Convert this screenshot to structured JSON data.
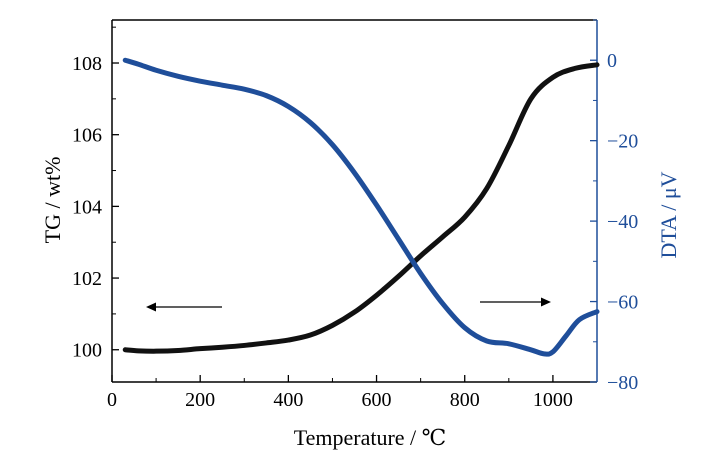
{
  "chart_data": {
    "type": "line",
    "xlabel": "Temperature / ℃",
    "ylabel_left": "TG / wt%",
    "ylabel_right": "DTA / μV",
    "xlim": [
      0,
      1100
    ],
    "ylim_left": [
      99.1,
      109.2
    ],
    "ylim_right": [
      -80,
      10
    ],
    "x_ticks": [
      "0",
      "200",
      "400",
      "600",
      "800",
      "1000"
    ],
    "y_left_ticks": [
      "100",
      "102",
      "104",
      "106",
      "108"
    ],
    "y_right_ticks": [
      "0",
      "−20",
      "−40",
      "−60",
      "−80"
    ],
    "grid": false,
    "legend": "none",
    "series": [
      {
        "axis": "left",
        "color": "#111111",
        "x": [
          30,
          60,
          100,
          150,
          200,
          250,
          300,
          350,
          400,
          450,
          500,
          550,
          600,
          650,
          700,
          750,
          800,
          850,
          900,
          950,
          1000,
          1050,
          1100
        ],
        "y": [
          100.0,
          99.97,
          99.96,
          99.98,
          100.03,
          100.07,
          100.12,
          100.19,
          100.27,
          100.41,
          100.68,
          101.05,
          101.52,
          102.05,
          102.62,
          103.15,
          103.7,
          104.5,
          105.7,
          107.0,
          107.6,
          107.85,
          107.95
        ]
      },
      {
        "axis": "right",
        "color": "#1f4e9a",
        "x": [
          30,
          60,
          100,
          150,
          200,
          250,
          300,
          350,
          400,
          450,
          500,
          550,
          600,
          650,
          700,
          750,
          800,
          850,
          900,
          950,
          980,
          1000,
          1030,
          1060,
          1100
        ],
        "y": [
          0.0,
          -1.0,
          -2.5,
          -4.0,
          -5.2,
          -6.2,
          -7.2,
          -8.8,
          -11.5,
          -15.5,
          -21.0,
          -28.0,
          -36.0,
          -44.5,
          -53.0,
          -60.5,
          -66.5,
          -69.8,
          -70.5,
          -72.0,
          -73.0,
          -72.5,
          -68.5,
          -64.5,
          -62.5
        ]
      }
    ],
    "annotations": [
      {
        "type": "arrow",
        "direction": "left",
        "points_to": "TG axis"
      },
      {
        "type": "arrow",
        "direction": "right",
        "points_to": "DTA axis"
      }
    ]
  }
}
